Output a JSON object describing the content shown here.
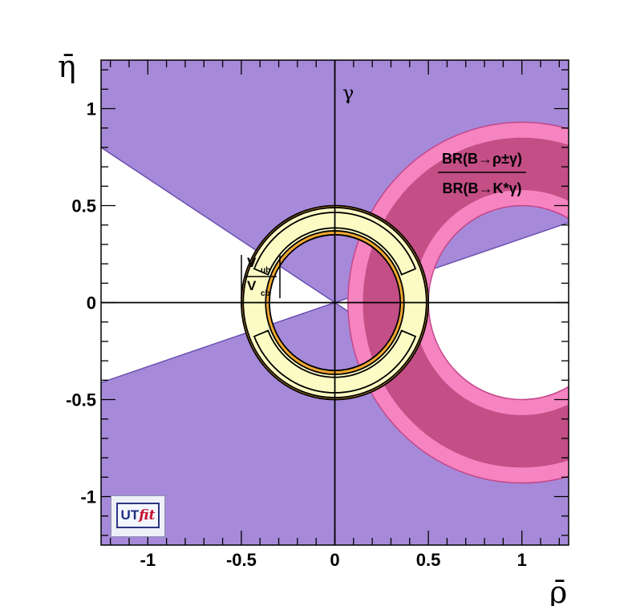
{
  "chart_data": {
    "type": "contour",
    "xlabel": "ρ̄",
    "ylabel": "η̄",
    "xlim": [
      -1.25,
      1.25
    ],
    "ylim": [
      -1.25,
      1.25
    ],
    "xticks": [
      -1,
      -0.5,
      0,
      0.5,
      1
    ],
    "yticks": [
      -1,
      -0.5,
      0,
      0.5,
      1
    ],
    "xtick_labels": [
      "-1",
      "-0.5",
      "0",
      "0.5",
      "1"
    ],
    "ytick_labels": [
      "-1",
      "-0.5",
      "0",
      "0.5",
      "1"
    ],
    "grid": false,
    "colors": {
      "gamma_band": "#a68ad9",
      "gamma_edge": "#6a4fb0",
      "rho_gamma_outer": "#f584c0",
      "rho_gamma_inner": "#c44e86",
      "vub_outer": "#f2a830",
      "vub_inner": "#fdfbc4",
      "vub_edge": "#000000"
    },
    "constraints": [
      {
        "label_num": "BR(B→ρ±γ)",
        "label_den": "BR(B→K*γ)",
        "shape": "annulus",
        "center": [
          1.0,
          0.0
        ],
        "radii_95": [
          0.5,
          0.93
        ],
        "radii_68": [
          0.58,
          0.85
        ]
      },
      {
        "label_num": "V",
        "label_num_sub": "ub",
        "label_den": "V",
        "label_den_sub": "cb",
        "shape": "annulus",
        "center": [
          0.0,
          0.0
        ],
        "radii_95": [
          0.35,
          0.5
        ],
        "radii_68": [
          0.37,
          0.49
        ]
      },
      {
        "label": "γ",
        "shape": "wedge",
        "apex": [
          0.0,
          0.0
        ],
        "edge_slopes": [
          -0.64,
          0.33
        ]
      }
    ]
  },
  "logo": {
    "ut": "UT",
    "fit": "fit"
  }
}
